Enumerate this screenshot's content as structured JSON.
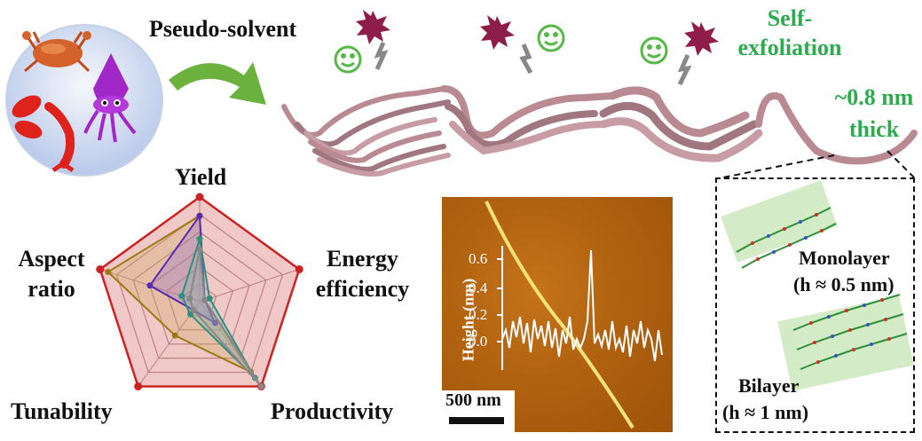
{
  "labels": {
    "pseudo_solvent": "Pseudo-solvent",
    "self_line1": "Self-",
    "self_line2": "exfoliation",
    "thick_line1": "~0.8 nm",
    "thick_line2": "thick",
    "monolayer": "Monolayer",
    "monolayer_h": "(h ≈ 0.5 nm)",
    "bilayer": "Bilayer",
    "bilayer_h": "(h ≈ 1 nm)",
    "scale_bar": "500 nm"
  },
  "radar": {
    "axes": [
      "Yield",
      "Energy efficiency",
      "Productivity",
      "Tunability",
      "Aspect ratio"
    ],
    "axis_labels": {
      "yield": "Yield",
      "energy1": "Energy",
      "energy2": "efficiency",
      "productivity": "Productivity",
      "tunability": "Tunability",
      "aspect1": "Aspect",
      "aspect2": "ratio"
    },
    "levels": 6,
    "max": 1,
    "series": [
      {
        "color": "#cc2222",
        "fill": "#e8a0a0",
        "values": [
          1.0,
          1.0,
          1.0,
          1.0,
          1.0
        ]
      },
      {
        "color": "#9a7a14",
        "fill": "#c9a85a",
        "values": [
          0.82,
          0.05,
          0.83,
          0.4,
          0.92
        ]
      },
      {
        "color": "#5a2bb0",
        "fill": "#8a6ad0",
        "values": [
          0.82,
          0.05,
          0.25,
          0.1,
          0.5
        ]
      },
      {
        "color": "#2f8f7f",
        "fill": "#70b6a8",
        "values": [
          0.6,
          0.1,
          0.9,
          0.15,
          0.18
        ]
      },
      {
        "color": "#888888",
        "fill": "#aaaaaa",
        "values": [
          0.5,
          0.05,
          1.0,
          0.1,
          0.1
        ]
      }
    ]
  },
  "afm_plot": {
    "ylabel": "Height (nm)",
    "yticks": [
      "0.0",
      "0.2",
      "0.4",
      "0.6"
    ]
  },
  "colors": {
    "accent_green": "#2eab4e",
    "fiber": "#b98a92",
    "star": "#8e1d4a",
    "arrow": "#6ab23d"
  }
}
